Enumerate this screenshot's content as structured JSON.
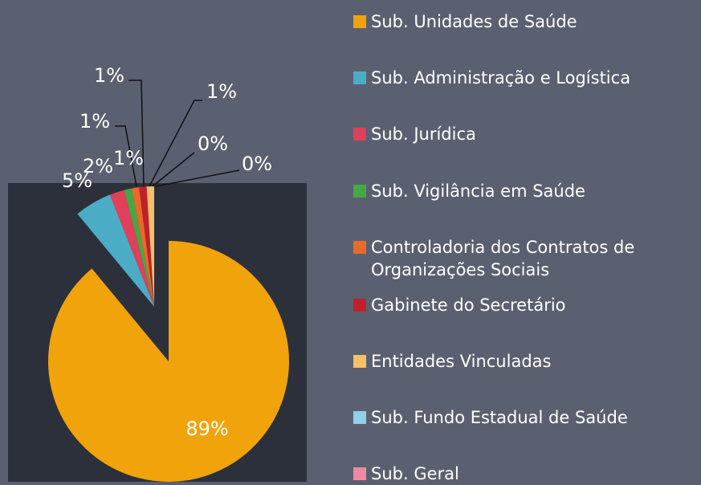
{
  "chart_data": {
    "type": "pie",
    "categories": [
      "Sub. Unidades de Saúde",
      "Sub. Administração e Logística",
      "Sub. Jurídica",
      "Sub. Vigilância em Saúde",
      "Controladoria dos Contratos de Organizações Sociais",
      "Gabinete do Secretário",
      "Entidades Vinculadas",
      "Sub. Fundo Estadual de Saúde",
      "Sub. Geral"
    ],
    "values": [
      89,
      5,
      2,
      1,
      1,
      1,
      1,
      0,
      0
    ],
    "value_labels": [
      "89%",
      "5%",
      "2%",
      "1%",
      "1%",
      "1%",
      "1%",
      "0%",
      "0%"
    ],
    "colors": [
      "#f0a30a",
      "#4bacc6",
      "#e0405a",
      "#45a845",
      "#e86a2a",
      "#c0202a",
      "#f6c06a",
      "#8fd0e8",
      "#f08aa0"
    ],
    "legend": "right"
  }
}
